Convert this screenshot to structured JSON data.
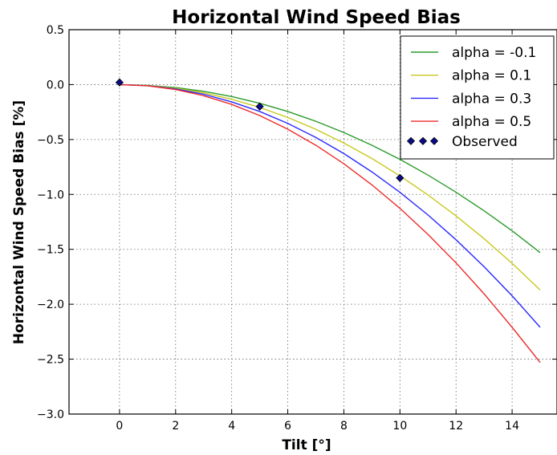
{
  "chart_data": {
    "type": "line",
    "title": "Horizontal Wind Speed Bias",
    "xlabel": "Tilt [°]",
    "ylabel": "Horizontal Wind Speed Bias [%]",
    "xlim": [
      -1.8,
      15.6
    ],
    "ylim": [
      -3.0,
      0.5
    ],
    "xticks": [
      0,
      2,
      4,
      6,
      8,
      10,
      12,
      14
    ],
    "yticks": [
      0.5,
      0.0,
      -0.5,
      -1.0,
      -1.5,
      -2.0,
      -2.5,
      -3.0
    ],
    "xtick_labels": [
      "0",
      "2",
      "4",
      "6",
      "8",
      "10",
      "12",
      "14"
    ],
    "ytick_labels": [
      "0.5",
      "0.0",
      "−0.5",
      "−1.0",
      "−1.5",
      "−2.0",
      "−2.5",
      "−3.0"
    ],
    "grid": true,
    "legend_position": "top-right",
    "x": [
      0,
      1,
      2,
      3,
      4,
      5,
      6,
      7,
      8,
      9,
      10,
      11,
      12,
      13,
      14,
      15
    ],
    "series": [
      {
        "name": "alpha = -0.1",
        "color": "#2a9a2a",
        "values": [
          0.0,
          -0.007,
          -0.027,
          -0.061,
          -0.109,
          -0.17,
          -0.245,
          -0.334,
          -0.436,
          -0.552,
          -0.681,
          -0.824,
          -0.98,
          -1.149,
          -1.331,
          -1.53
        ]
      },
      {
        "name": "alpha = 0.1",
        "color": "#c8c820",
        "values": [
          0.0,
          -0.008,
          -0.033,
          -0.075,
          -0.133,
          -0.208,
          -0.299,
          -0.407,
          -0.532,
          -0.673,
          -0.831,
          -1.005,
          -1.196,
          -1.403,
          -1.627,
          -1.87
        ]
      },
      {
        "name": "alpha = 0.3",
        "color": "#2a2aff",
        "values": [
          0.0,
          -0.01,
          -0.039,
          -0.088,
          -0.157,
          -0.245,
          -0.353,
          -0.481,
          -0.628,
          -0.795,
          -0.981,
          -1.187,
          -1.413,
          -1.658,
          -1.923,
          -2.21
        ]
      },
      {
        "name": "alpha = 0.5",
        "color": "#ee2a2a",
        "values": [
          0.0,
          -0.011,
          -0.045,
          -0.101,
          -0.18,
          -0.282,
          -0.406,
          -0.552,
          -0.721,
          -0.913,
          -1.127,
          -1.364,
          -1.623,
          -1.905,
          -2.21,
          -2.53
        ]
      }
    ],
    "observed": {
      "name": "Observed",
      "color": "#0a0a8c",
      "points": [
        {
          "x": 0,
          "y": 0.02
        },
        {
          "x": 5,
          "y": -0.2
        },
        {
          "x": 10,
          "y": -0.85
        }
      ]
    }
  }
}
